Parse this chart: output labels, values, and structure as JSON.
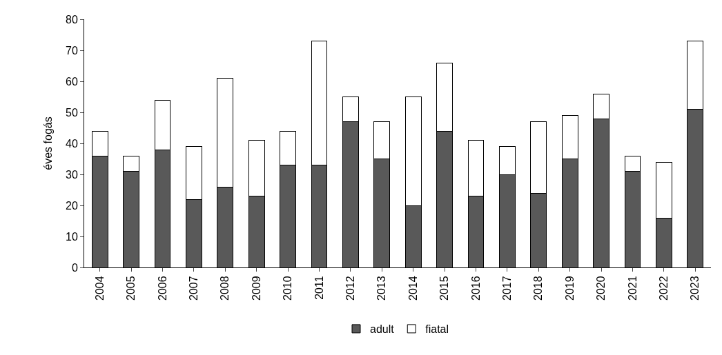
{
  "chart_data": {
    "type": "bar",
    "stacked": true,
    "ylabel": "éves fogás",
    "categories": [
      "2004",
      "2005",
      "2006",
      "2007",
      "2008",
      "2009",
      "2010",
      "2011",
      "2012",
      "2013",
      "2014",
      "2015",
      "2016",
      "2017",
      "2018",
      "2019",
      "2020",
      "2021",
      "2022",
      "2023"
    ],
    "series": [
      {
        "name": "adult",
        "color": "#595959",
        "values": [
          36,
          31,
          38,
          22,
          26,
          23,
          33,
          33,
          47,
          35,
          20,
          44,
          23,
          30,
          24,
          35,
          48,
          31,
          16,
          51
        ]
      },
      {
        "name": "fiatal",
        "color": "#ffffff",
        "values": [
          8,
          5,
          16,
          17,
          35,
          18,
          11,
          40,
          8,
          12,
          35,
          22,
          18,
          9,
          23,
          14,
          8,
          5,
          18,
          22
        ]
      }
    ],
    "ylim": [
      0,
      80
    ],
    "yticks": [
      0,
      10,
      20,
      30,
      40,
      50,
      60,
      70,
      80
    ],
    "legend": "bottom"
  }
}
